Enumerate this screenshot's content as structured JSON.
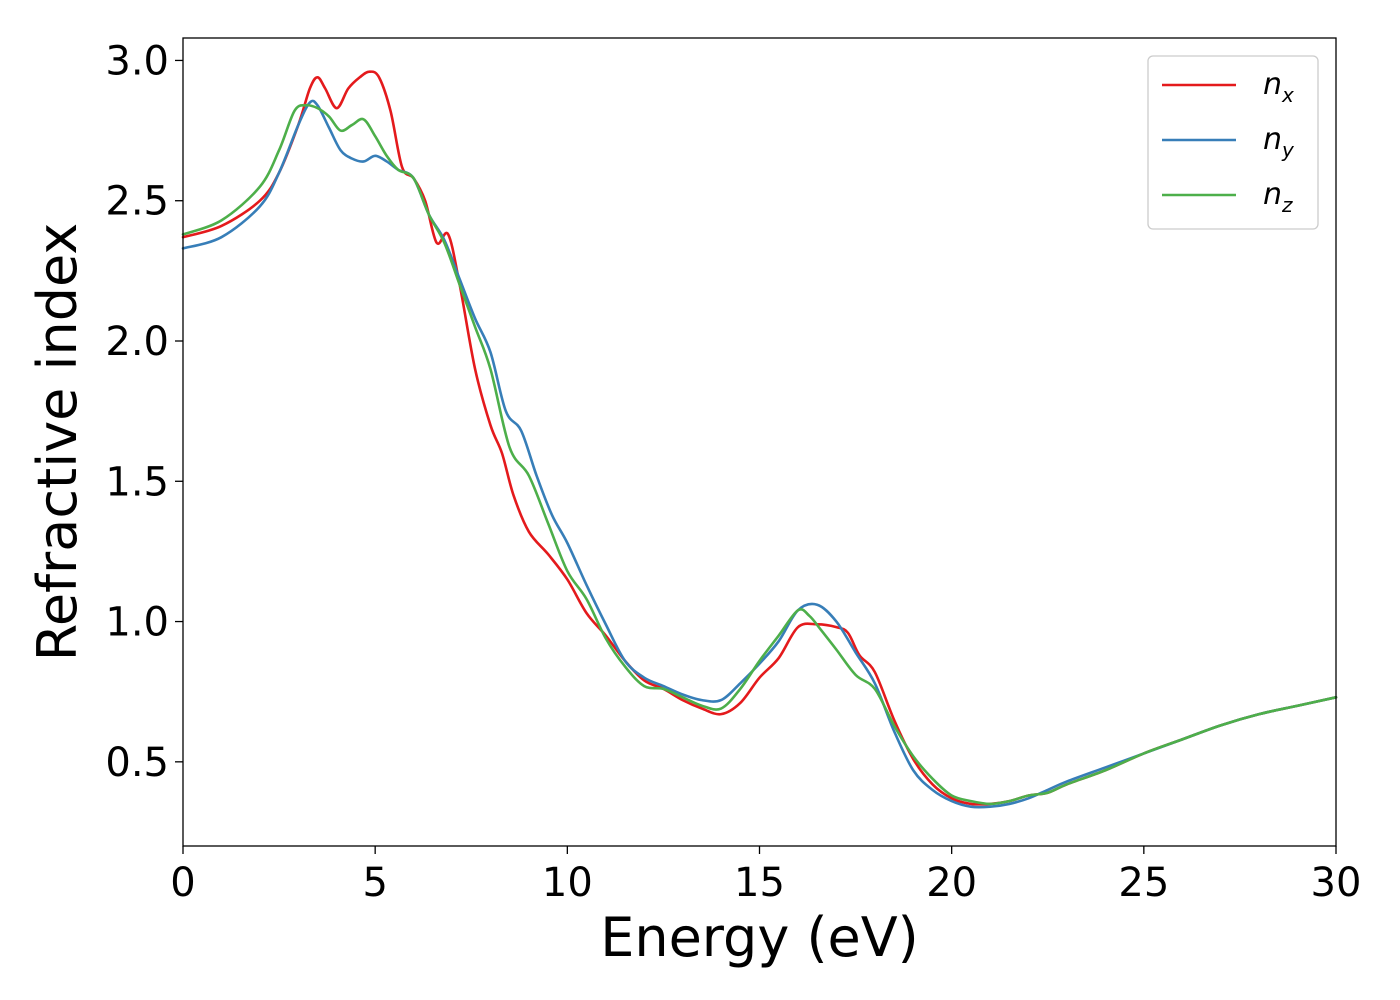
{
  "chart_data": {
    "type": "line",
    "xlabel": "Energy (eV)",
    "ylabel": "Refractive index",
    "xlim": [
      0,
      30
    ],
    "ylim": [
      0.2,
      3.08
    ],
    "xticks": [
      0,
      5,
      10,
      15,
      20,
      25,
      30
    ],
    "xtick_labels": [
      "0",
      "5",
      "10",
      "15",
      "20",
      "25",
      "30"
    ],
    "yticks": [
      0.5,
      1.0,
      1.5,
      2.0,
      2.5,
      3.0
    ],
    "ytick_labels": [
      "0.5",
      "1.0",
      "1.5",
      "2.0",
      "2.5",
      "3.0"
    ],
    "grid": false,
    "legend_position": "top-right",
    "series": [
      {
        "name": "n_x",
        "legend_main": "n",
        "legend_sub": "x",
        "color": "#e41a1c",
        "points": [
          [
            0,
            2.37
          ],
          [
            1,
            2.41
          ],
          [
            2,
            2.5
          ],
          [
            2.5,
            2.6
          ],
          [
            3,
            2.77
          ],
          [
            3.3,
            2.9
          ],
          [
            3.5,
            2.94
          ],
          [
            3.7,
            2.9
          ],
          [
            4,
            2.83
          ],
          [
            4.3,
            2.9
          ],
          [
            4.6,
            2.94
          ],
          [
            4.85,
            2.96
          ],
          [
            5.1,
            2.94
          ],
          [
            5.4,
            2.82
          ],
          [
            5.7,
            2.62
          ],
          [
            6,
            2.58
          ],
          [
            6.3,
            2.5
          ],
          [
            6.6,
            2.35
          ],
          [
            6.9,
            2.38
          ],
          [
            7.2,
            2.2
          ],
          [
            7.6,
            1.9
          ],
          [
            8,
            1.7
          ],
          [
            8.3,
            1.6
          ],
          [
            8.6,
            1.45
          ],
          [
            9,
            1.32
          ],
          [
            9.5,
            1.24
          ],
          [
            10,
            1.15
          ],
          [
            10.5,
            1.03
          ],
          [
            11,
            0.95
          ],
          [
            11.5,
            0.86
          ],
          [
            12,
            0.79
          ],
          [
            12.5,
            0.76
          ],
          [
            13,
            0.72
          ],
          [
            13.5,
            0.69
          ],
          [
            14,
            0.67
          ],
          [
            14.5,
            0.71
          ],
          [
            15,
            0.8
          ],
          [
            15.5,
            0.87
          ],
          [
            16,
            0.98
          ],
          [
            16.5,
            0.99
          ],
          [
            17,
            0.98
          ],
          [
            17.3,
            0.96
          ],
          [
            17.6,
            0.88
          ],
          [
            18,
            0.82
          ],
          [
            18.5,
            0.65
          ],
          [
            19,
            0.51
          ],
          [
            19.5,
            0.42
          ],
          [
            20,
            0.37
          ],
          [
            20.5,
            0.35
          ],
          [
            21,
            0.35
          ],
          [
            21.5,
            0.36
          ],
          [
            22,
            0.38
          ],
          [
            22.5,
            0.39
          ],
          [
            23,
            0.42
          ],
          [
            24,
            0.47
          ],
          [
            25,
            0.53
          ],
          [
            26,
            0.58
          ],
          [
            27,
            0.63
          ],
          [
            28,
            0.67
          ],
          [
            29,
            0.7
          ],
          [
            30,
            0.73
          ]
        ]
      },
      {
        "name": "n_y",
        "legend_main": "n",
        "legend_sub": "y",
        "color": "#377eb8",
        "points": [
          [
            0,
            2.33
          ],
          [
            1,
            2.37
          ],
          [
            2,
            2.48
          ],
          [
            2.5,
            2.6
          ],
          [
            3,
            2.77
          ],
          [
            3.3,
            2.85
          ],
          [
            3.5,
            2.84
          ],
          [
            3.8,
            2.76
          ],
          [
            4.1,
            2.68
          ],
          [
            4.4,
            2.65
          ],
          [
            4.7,
            2.64
          ],
          [
            5,
            2.66
          ],
          [
            5.3,
            2.64
          ],
          [
            5.6,
            2.61
          ],
          [
            6,
            2.58
          ],
          [
            6.4,
            2.45
          ],
          [
            6.8,
            2.36
          ],
          [
            7.2,
            2.22
          ],
          [
            7.6,
            2.08
          ],
          [
            8,
            1.96
          ],
          [
            8.4,
            1.75
          ],
          [
            8.8,
            1.68
          ],
          [
            9.2,
            1.52
          ],
          [
            9.6,
            1.38
          ],
          [
            10,
            1.28
          ],
          [
            10.5,
            1.13
          ],
          [
            11,
            0.99
          ],
          [
            11.5,
            0.86
          ],
          [
            12,
            0.8
          ],
          [
            12.5,
            0.77
          ],
          [
            13,
            0.74
          ],
          [
            13.5,
            0.72
          ],
          [
            14,
            0.72
          ],
          [
            14.5,
            0.78
          ],
          [
            15,
            0.85
          ],
          [
            15.5,
            0.93
          ],
          [
            16,
            1.04
          ],
          [
            16.5,
            1.06
          ],
          [
            17,
            1.0
          ],
          [
            17.5,
            0.89
          ],
          [
            18,
            0.78
          ],
          [
            18.5,
            0.61
          ],
          [
            19,
            0.47
          ],
          [
            19.5,
            0.4
          ],
          [
            20,
            0.36
          ],
          [
            20.5,
            0.34
          ],
          [
            21,
            0.34
          ],
          [
            21.5,
            0.35
          ],
          [
            22,
            0.37
          ],
          [
            22.5,
            0.4
          ],
          [
            23,
            0.43
          ],
          [
            24,
            0.48
          ],
          [
            25,
            0.53
          ],
          [
            26,
            0.58
          ],
          [
            27,
            0.63
          ],
          [
            28,
            0.67
          ],
          [
            29,
            0.7
          ],
          [
            30,
            0.73
          ]
        ]
      },
      {
        "name": "n_z",
        "legend_main": "n",
        "legend_sub": "z",
        "color": "#4daf4a",
        "points": [
          [
            0,
            2.38
          ],
          [
            1,
            2.43
          ],
          [
            2,
            2.55
          ],
          [
            2.5,
            2.68
          ],
          [
            2.9,
            2.82
          ],
          [
            3.2,
            2.84
          ],
          [
            3.5,
            2.83
          ],
          [
            3.8,
            2.8
          ],
          [
            4.1,
            2.75
          ],
          [
            4.4,
            2.77
          ],
          [
            4.7,
            2.79
          ],
          [
            5,
            2.73
          ],
          [
            5.3,
            2.66
          ],
          [
            5.6,
            2.61
          ],
          [
            6,
            2.58
          ],
          [
            6.4,
            2.45
          ],
          [
            6.8,
            2.35
          ],
          [
            7.2,
            2.2
          ],
          [
            7.6,
            2.05
          ],
          [
            8,
            1.9
          ],
          [
            8.5,
            1.62
          ],
          [
            9,
            1.52
          ],
          [
            9.5,
            1.35
          ],
          [
            10,
            1.18
          ],
          [
            10.5,
            1.08
          ],
          [
            11,
            0.94
          ],
          [
            11.5,
            0.84
          ],
          [
            12,
            0.77
          ],
          [
            12.5,
            0.76
          ],
          [
            13,
            0.73
          ],
          [
            13.5,
            0.7
          ],
          [
            14,
            0.69
          ],
          [
            14.5,
            0.76
          ],
          [
            15,
            0.86
          ],
          [
            15.5,
            0.95
          ],
          [
            16,
            1.04
          ],
          [
            16.3,
            1.02
          ],
          [
            16.6,
            0.97
          ],
          [
            17,
            0.9
          ],
          [
            17.5,
            0.81
          ],
          [
            18,
            0.76
          ],
          [
            18.5,
            0.63
          ],
          [
            19,
            0.52
          ],
          [
            19.5,
            0.44
          ],
          [
            20,
            0.38
          ],
          [
            20.5,
            0.36
          ],
          [
            21,
            0.35
          ],
          [
            21.5,
            0.36
          ],
          [
            22,
            0.38
          ],
          [
            22.5,
            0.39
          ],
          [
            23,
            0.42
          ],
          [
            24,
            0.47
          ],
          [
            25,
            0.53
          ],
          [
            26,
            0.58
          ],
          [
            27,
            0.63
          ],
          [
            28,
            0.67
          ],
          [
            29,
            0.7
          ],
          [
            30,
            0.73
          ]
        ]
      }
    ]
  }
}
